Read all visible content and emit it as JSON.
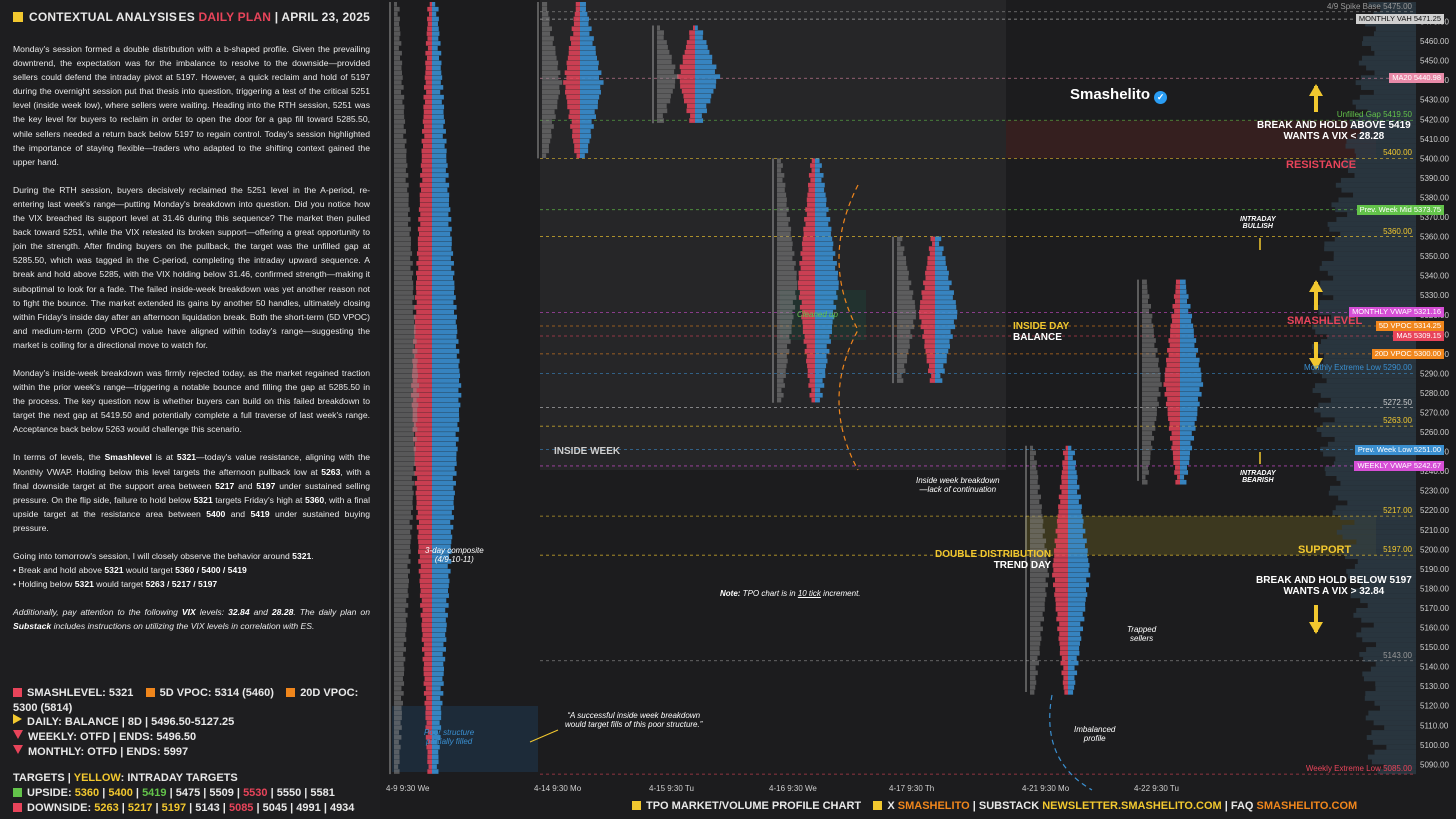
{
  "header": {
    "title": "CONTEXTUAL ANALYSIS",
    "es": "ES",
    "plan": "DAILY PLAN",
    "sep": "|",
    "date": "APRIL 23, 2025"
  },
  "paragraphs": [
    "Monday's session formed a double distribution with a b-shaped profile. Given the prevailing downtrend, the expectation was for the imbalance to resolve to the downside—provided sellers could defend the intraday pivot at 5197. However, a quick reclaim and hold of 5197 during the overnight session put that thesis into question, triggering a test of the critical 5251 level (inside week low), where sellers were waiting. Heading into the RTH session, 5251 was the key level for buyers to reclaim in order to open the door for a gap fill toward 5285.50, while sellers needed a return back below 5197 to regain control. Today's session highlighted the importance of staying flexible—traders who adapted to the shifting context gained the upper hand.",
    "During the RTH session, buyers decisively reclaimed the 5251 level in the A-period, re-entering last week's range—putting Monday's breakdown into question. Did you notice how the VIX breached its support level at 31.46 during this sequence? The market then pulled back toward 5251, while the VIX retested its broken support—offering a great opportunity to join the strength. After finding buyers on the pullback, the target was the unfilled gap at 5285.50, which was tagged in the C-period, completing the intraday upward sequence. A break and hold above 5285, with the VIX holding below 31.46, confirmed strength—making it suboptimal to look for a fade. The failed inside-week breakdown was yet another reason not to fight the bounce. The market extended its gains by another 50 handles, ultimately closing within Friday's inside day after an afternoon liquidation break. Both the short-term (5D VPOC) and medium-term (20D VPOC) value have aligned within today's range—suggesting the market is coiling for a directional move to watch for.",
    "Monday's inside-week breakdown was firmly rejected today, as the market regained traction within the prior week's range—triggering a notable bounce and filling the gap at 5285.50 in the process. The key question now is whether buyers can build on this failed breakdown to target the next gap at 5419.50 and potentially complete a full traverse of last week's range. Acceptance back below 5263 would challenge this scenario."
  ],
  "para4": {
    "p1": "In terms of levels, the ",
    "b1": "Smashlevel",
    "p2": " is at ",
    "b2": "5321",
    "p3": "—today's value resistance, aligning with the Monthly VWAP. Holding below this level targets the afternoon pullback low at ",
    "b3": "5263",
    "p4": ", with a final downside target at the support area between ",
    "b4": "5217",
    "p5": " and ",
    "b6": "5197",
    "p6": " under sustained selling pressure. On the flip side, failure to hold below ",
    "b7": "5321",
    "p7": " targets Friday's high at ",
    "b8": "5360",
    "p8": ", with a final upside target at the resistance area between ",
    "b9": "5400",
    "p9": " and ",
    "b10": "5419",
    "p10": " under sustained buying pressure."
  },
  "para5": {
    "intro": "Going into tomorrow's session, I will closely observe the behavior around ",
    "lvl": "5321",
    "dot": ".",
    "b1a": "• Break and hold above ",
    "b1b": "5321",
    "b1c": " would target ",
    "b1d": "5360 / 5400 / 5419",
    "b2a": "• Holding below ",
    "b2b": "5321",
    "b2c": " would target ",
    "b2d": "5263 / 5217 / 5197"
  },
  "para6": {
    "a": "Additionally, pay attention to the following ",
    "b": "VIX",
    "c": " levels: ",
    "d": "32.84",
    "e": " and ",
    "f": "28.28",
    "g": ". The daily plan on ",
    "h": "Substack",
    "i": " includes instructions on utilizing the VIX levels in correlation with ES."
  },
  "legend": {
    "smash": "SMASHLEVEL: 5321",
    "vpoc5": "5D VPOC: 5314 (5460)",
    "vpoc20": "20D VPOC: 5300 (5814)",
    "daily": "DAILY: BALANCE | 8D | 5496.50-5127.25",
    "weekly": "WEEKLY: OTFD | ENDS: 5496.50",
    "monthly": "MONTHLY: OTFD | ENDS: 5997",
    "targets_a": "TARGETS | ",
    "targets_b": "YELLOW",
    "targets_c": ": INTRADAY TARGETS",
    "up_label": "UPSIDE: ",
    "up_levels": [
      {
        "t": "5360",
        "c": "yel"
      },
      {
        "t": " | ",
        "c": ""
      },
      {
        "t": "5400",
        "c": "yel"
      },
      {
        "t": " | ",
        "c": ""
      },
      {
        "t": "5419",
        "c": "grn"
      },
      {
        "t": " | 5475 | 5509 | ",
        "c": ""
      },
      {
        "t": "5530",
        "c": "pink"
      },
      {
        "t": " | 5550 | 5581",
        "c": ""
      }
    ],
    "dn_label": "DOWNSIDE: ",
    "dn_levels": [
      {
        "t": "5263",
        "c": "yel"
      },
      {
        "t": " | ",
        "c": ""
      },
      {
        "t": "5217",
        "c": "yel"
      },
      {
        "t": " | ",
        "c": ""
      },
      {
        "t": "5197",
        "c": "yel"
      },
      {
        "t": " | 5143 | ",
        "c": ""
      },
      {
        "t": "5085",
        "c": "pink"
      },
      {
        "t": " | 5045 | 4991 | 4934",
        "c": ""
      }
    ]
  },
  "footer": {
    "a": "TPO MARKET/VOLUME PROFILE CHART",
    "b": "X ",
    "c": "SMASHELITO",
    "d": " | SUBSTACK ",
    "e": "NEWSLETTER.SMASHELITO.COM",
    "f": " | FAQ ",
    "g": "SMASHELITO.COM"
  },
  "brand": "Smashelito",
  "chart_data": {
    "type": "tpo_profile",
    "y_axis": {
      "min": 5085,
      "max": 5480,
      "ticks": [
        5470,
        5460,
        5450,
        5440,
        5430,
        5420,
        5410,
        5400,
        5390,
        5380,
        5370,
        5360,
        5350,
        5340,
        5330,
        5320,
        5310,
        5300,
        5290,
        5280,
        5270,
        5260,
        5250,
        5240,
        5230,
        5220,
        5210,
        5200,
        5190,
        5180,
        5170,
        5160,
        5150,
        5140,
        5130,
        5120,
        5110,
        5100,
        5090
      ]
    },
    "sessions": [
      {
        "label": "4-9  9:30 We",
        "hi": 5480,
        "lo": 5085
      },
      {
        "label": "4-14  9:30 Mo",
        "hi": 5480,
        "lo": 5400
      },
      {
        "label": "4-15  9:30 Tu",
        "hi": 5468,
        "lo": 5418
      },
      {
        "label": "4-16  9:30 We",
        "hi": 5400,
        "lo": 5275
      },
      {
        "label": "4-17  9:30 Th",
        "hi": 5360,
        "lo": 5285
      },
      {
        "label": "4-21  9:30 Mo",
        "hi": 5253,
        "lo": 5127
      },
      {
        "label": "4-22  9:30 Tu",
        "hi": 5338,
        "lo": 5235
      }
    ],
    "levels": [
      {
        "name": "4/9 Spike Base",
        "price": 5475.0,
        "text": "4/9 Spike Base  5475.00",
        "color": "#9a9a9a"
      },
      {
        "name": "MONTHLY VAH",
        "price": 5471.25,
        "text": "5471.25",
        "tag": "MONTHLY VAH",
        "color": "#cfcfcf"
      },
      {
        "name": "MA20",
        "price": 5440.98,
        "text": "5440.98",
        "tag": "MA20",
        "color": "#e88aa8"
      },
      {
        "name": "Unfilled Gap",
        "price": 5419.5,
        "text": "Unfilled Gap  5419.50",
        "color": "#63c34a"
      },
      {
        "name": "5400",
        "price": 5400.0,
        "text": "5400.00",
        "color": "#f2c82f"
      },
      {
        "name": "Prev. Week Mid",
        "price": 5373.75,
        "text": "5373.75",
        "tag": "Prev. Week Mid",
        "color": "#63c34a"
      },
      {
        "name": "5360",
        "price": 5360.0,
        "text": "5360.00",
        "color": "#f2c82f"
      },
      {
        "name": "MONTHLY VWAP",
        "price": 5321.16,
        "text": "5321.16",
        "tag": "MONTHLY VWAP",
        "color": "#d64fd6"
      },
      {
        "name": "5D VPOC",
        "price": 5314.25,
        "text": "5314.25",
        "tag": "5D VPOC",
        "color": "#f0861c"
      },
      {
        "name": "MA5",
        "price": 5309.15,
        "text": "5309.15",
        "tag": "MA5",
        "color": "#e8445a"
      },
      {
        "name": "20D VPOC",
        "price": 5300.0,
        "text": "5300.00",
        "tag": "20D VPOC",
        "color": "#f0861c"
      },
      {
        "name": "Monthly Extreme Low",
        "price": 5290.0,
        "text": "Monthly Extreme Low  5290.00",
        "color": "#3a8fd0"
      },
      {
        "name": "5272.50",
        "price": 5272.5,
        "text": "5272.50",
        "color": "#cfcfcf"
      },
      {
        "name": "5263",
        "price": 5263.0,
        "text": "5263.00",
        "color": "#f2c82f"
      },
      {
        "name": "Prev. Week Low",
        "price": 5251.0,
        "text": "5251.00",
        "tag": "Prev. Week Low",
        "color": "#3a8fd0"
      },
      {
        "name": "WEEKLY VWAP",
        "price": 5242.67,
        "text": "5242.67",
        "tag": "WEEKLY VWAP",
        "color": "#d64fd6"
      },
      {
        "name": "5217",
        "price": 5217.0,
        "text": "5217.00",
        "color": "#f2c82f"
      },
      {
        "name": "5197",
        "price": 5197.0,
        "text": "5197.00",
        "color": "#f2c82f"
      },
      {
        "name": "5143",
        "price": 5143.0,
        "text": "5143.00",
        "color": "#9a9a9a"
      },
      {
        "name": "Weekly Extreme Low",
        "price": 5085.0,
        "text": "Weekly Extreme Low  5085.00",
        "color": "#e8445a"
      }
    ],
    "zones": [
      {
        "name": "RESISTANCE",
        "lo": 5400,
        "hi": 5419.5,
        "color": "#a33"
      },
      {
        "name": "SUPPORT",
        "lo": 5197,
        "hi": 5217,
        "color": "#f2c82f"
      },
      {
        "name": "SMASHLEVEL",
        "price": 5321,
        "color": "#e8445a"
      }
    ],
    "annotations": {
      "resistance": "RESISTANCE",
      "support": "SUPPORT",
      "smashlevel": "SMASHLEVEL",
      "break_above_1": "BREAK AND HOLD ABOVE 5419",
      "break_above_2": "WANTS A VIX < 28.28",
      "break_below_1": "BREAK AND HOLD BELOW 5197",
      "break_below_2": "WANTS A VIX > 32.84",
      "intraday_bullish_1": "INTRADAY",
      "intraday_bullish_2": "BULLISH",
      "intraday_bearish_1": "INTRADAY",
      "intraday_bearish_2": "BEARISH",
      "inside_week": "INSIDE WEEK",
      "inside_day_1": "INSIDE DAY",
      "inside_day_2": "BALANCE",
      "double_dist_1": "DOUBLE DISTRIBUTION",
      "double_dist_2": "TREND DAY",
      "cleaned_up": "Cleaned up",
      "composite_1": "3-day composite",
      "composite_2": "(4/9-10-11)",
      "poor_1": "Poor structure",
      "poor_2": "partially filled",
      "quote_1": "“A successful inside week breakdown",
      "quote_2": "would target fills of this poor structure.”",
      "breakdown_1": "Inside week breakdown",
      "breakdown_2": "—lack of continuation",
      "trapped_1": "Trapped",
      "trapped_2": "sellers",
      "imbalanced_1": "Imbalanced",
      "imbalanced_2": "profile",
      "note_a": "Note:",
      "note_b": " TPO chart is in ",
      "note_c": "10 tick",
      "note_d": " increment."
    }
  }
}
